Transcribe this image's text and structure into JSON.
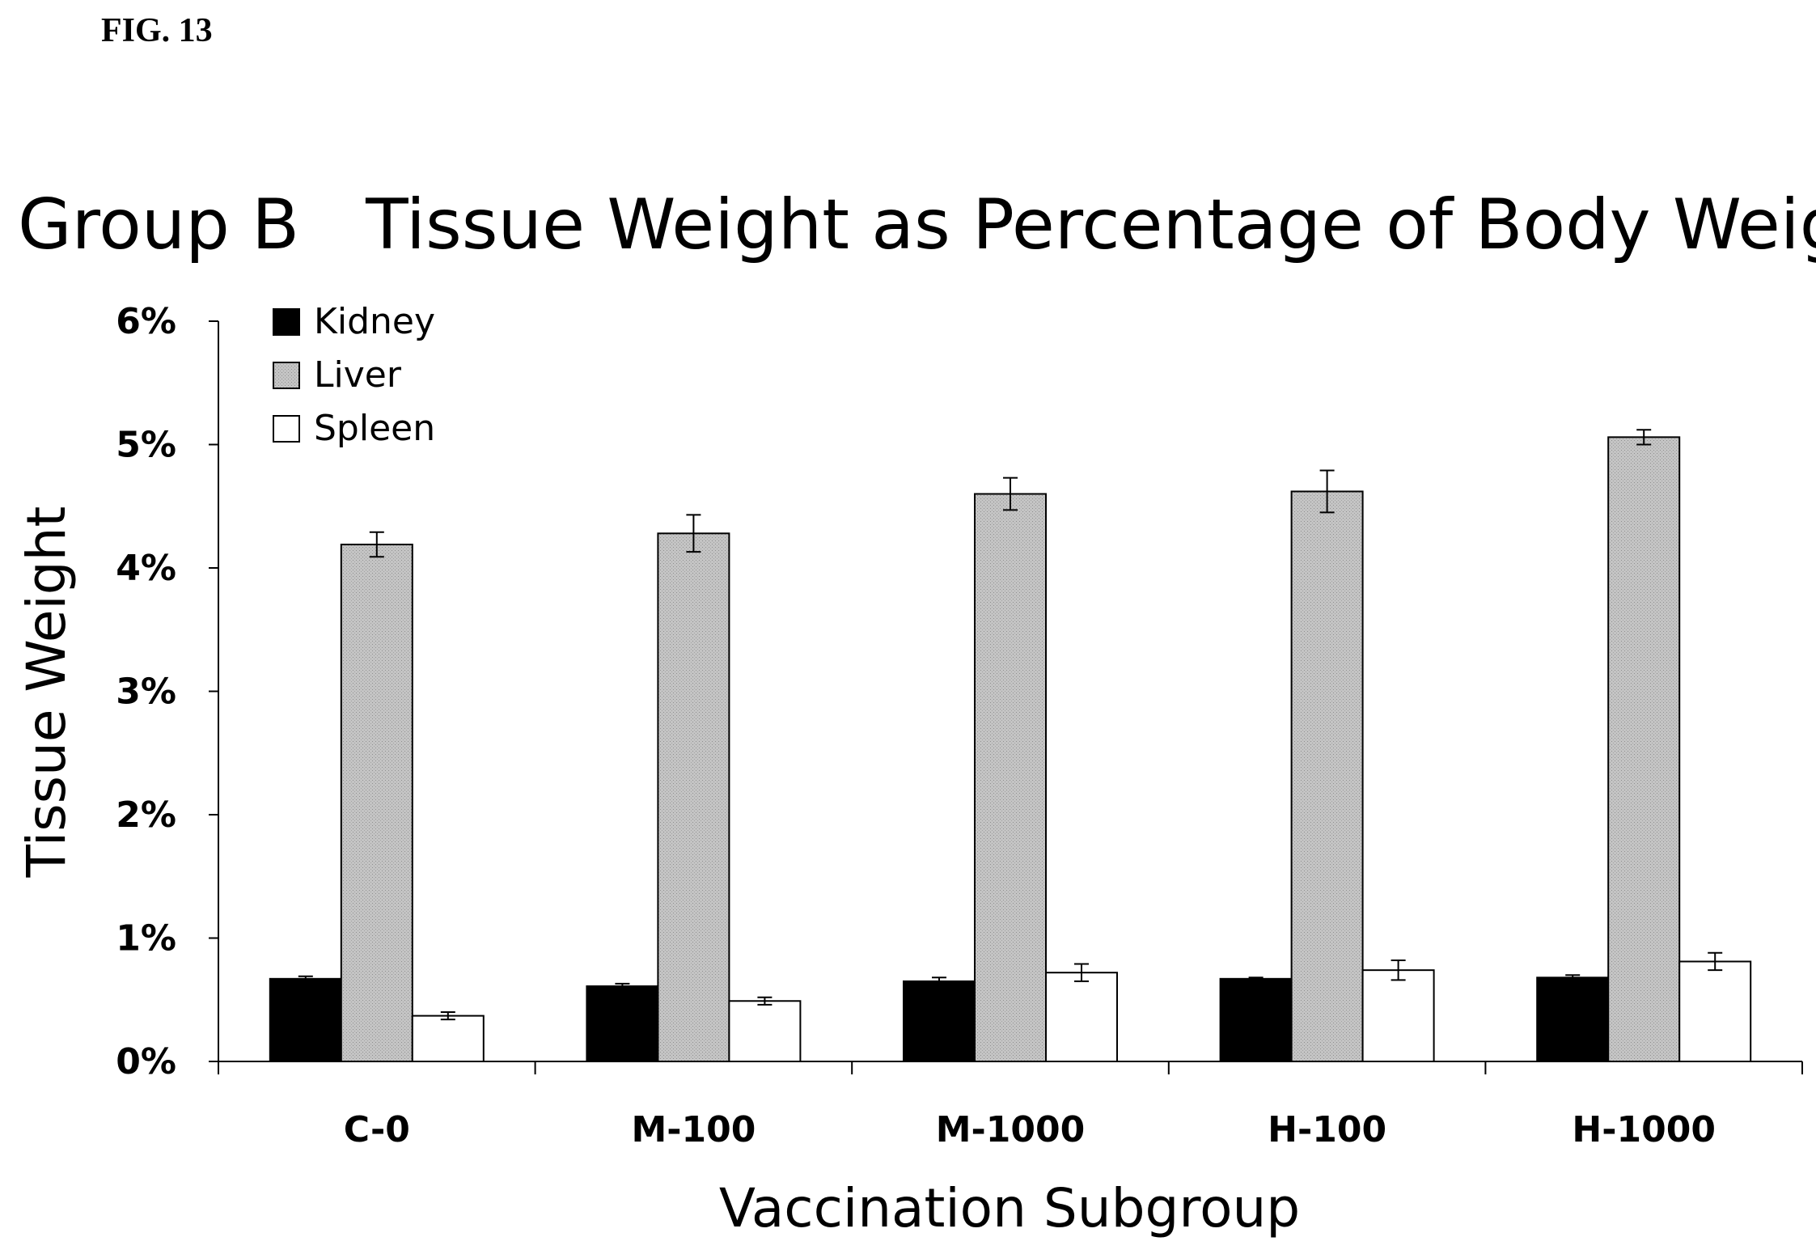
{
  "figure_label": "FIG. 13",
  "chart_data": {
    "type": "bar",
    "title": "Group B   Tissue Weight as Percentage of Body Weight",
    "xlabel": "Vaccination Subgroup",
    "ylabel": "Tissue Weight",
    "categories": [
      "C-0",
      "M-100",
      "M-1000",
      "H-100",
      "H-1000"
    ],
    "ylim": [
      0,
      6
    ],
    "yticks": [
      0,
      1,
      2,
      3,
      4,
      5,
      6
    ],
    "ytick_labels": [
      "0%",
      "1%",
      "2%",
      "3%",
      "4%",
      "5%",
      "6%"
    ],
    "unit": "%",
    "legend_position": "top-left",
    "grid": false,
    "series": [
      {
        "name": "Kidney",
        "color": "#000000",
        "values": [
          0.67,
          0.61,
          0.65,
          0.67,
          0.68
        ],
        "errors": [
          0.02,
          0.02,
          0.03,
          0.01,
          0.02
        ]
      },
      {
        "name": "Liver",
        "color": "#b8b8b8",
        "values": [
          4.19,
          4.28,
          4.6,
          4.62,
          5.06
        ],
        "errors": [
          0.1,
          0.15,
          0.13,
          0.17,
          0.06
        ]
      },
      {
        "name": "Spleen",
        "color": "#ffffff",
        "values": [
          0.37,
          0.49,
          0.72,
          0.74,
          0.81
        ],
        "errors": [
          0.03,
          0.03,
          0.07,
          0.08,
          0.07
        ]
      }
    ]
  }
}
